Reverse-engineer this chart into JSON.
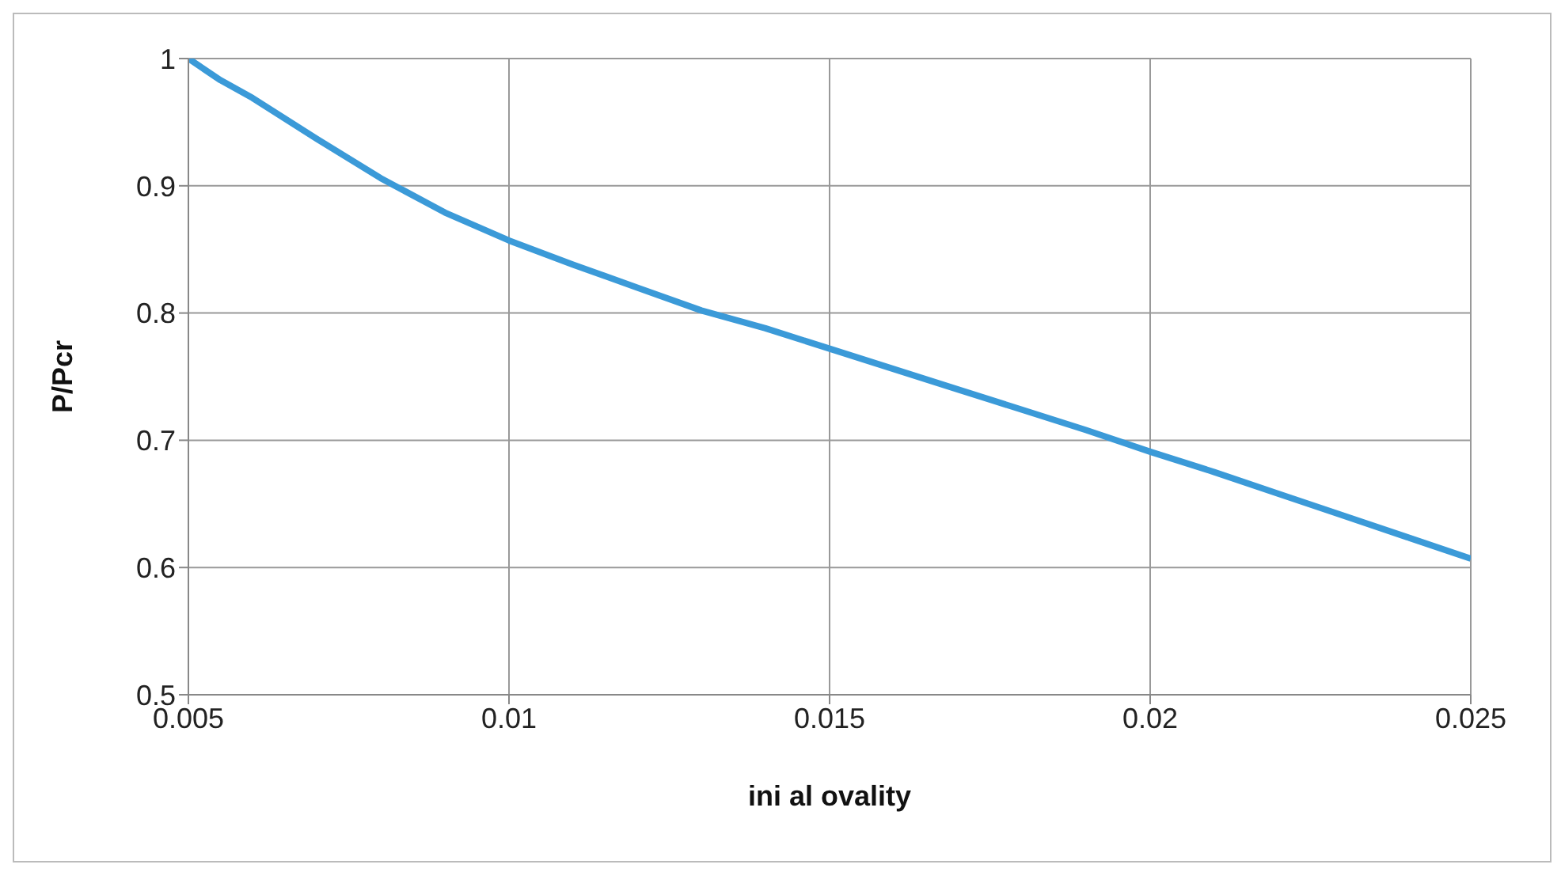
{
  "chart_data": {
    "type": "line",
    "xlabel": "ini al ovality",
    "ylabel": "P/Pcr",
    "x": [
      0.005,
      0.0055,
      0.006,
      0.007,
      0.008,
      0.009,
      0.01,
      0.011,
      0.012,
      0.013,
      0.014,
      0.015,
      0.016,
      0.017,
      0.018,
      0.019,
      0.02,
      0.021,
      0.022,
      0.023,
      0.024,
      0.025
    ],
    "series": [
      {
        "color": "#3b9ad8",
        "values": [
          1,
          0.983,
          0.969,
          0.937,
          0.906,
          0.879,
          0.857,
          0.838,
          0.82,
          0.802,
          0.788,
          0.772,
          0.756,
          0.74,
          0.724,
          0.708,
          0.691,
          0.675,
          0.658,
          0.641,
          0.624,
          0.607
        ]
      }
    ],
    "xlim": [
      0.005,
      0.025
    ],
    "xticks": [
      0.005,
      0.01,
      0.015,
      0.02,
      0.025
    ],
    "ylim": [
      0.5,
      1
    ],
    "yticks": [
      0.5,
      0.6,
      0.7,
      0.8,
      0.9,
      1
    ],
    "grid": true,
    "marker": "none",
    "line_style": "solid"
  }
}
